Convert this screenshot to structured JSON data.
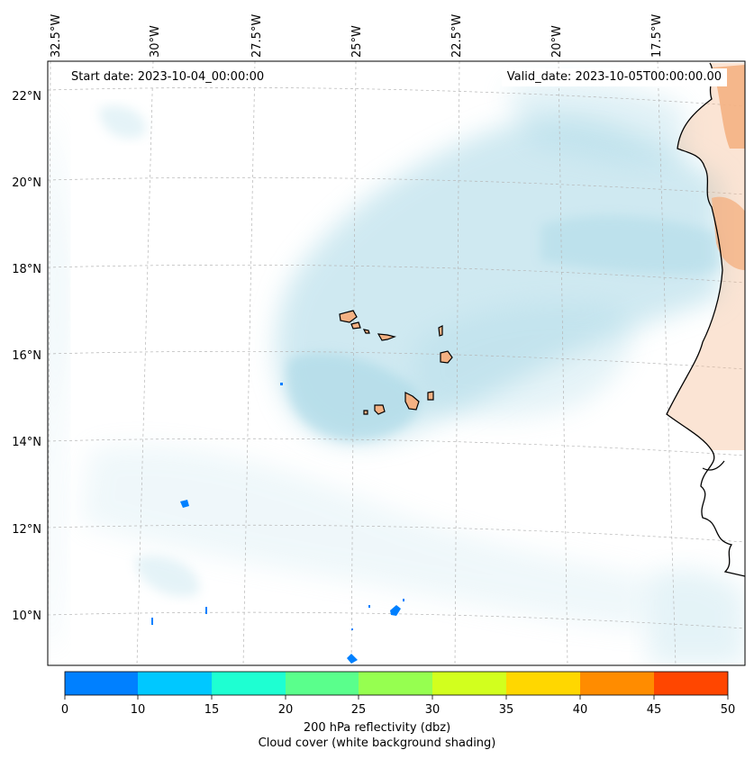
{
  "header": {
    "start_date": "Start date: 2023-10-04_00:00:00",
    "valid_date": "Valid_date: 2023-10-05T00:00:00.00"
  },
  "lon_labels": [
    "32.5°W",
    "30°W",
    "27.5°W",
    "25°W",
    "22.5°W",
    "20°W",
    "17.5°W"
  ],
  "lat_labels": [
    "22°N",
    "20°N",
    "18°N",
    "16°N",
    "14°N",
    "12°N",
    "10°N"
  ],
  "colorbar": {
    "ticks": [
      "0",
      "10",
      "15",
      "20",
      "25",
      "30",
      "35",
      "40",
      "45",
      "50"
    ],
    "colors": [
      "#0080ff",
      "#00c8ff",
      "#1effd2",
      "#5aff8c",
      "#96ff50",
      "#d2ff1e",
      "#ffd700",
      "#ff8c00",
      "#ff4600"
    ],
    "label_line1": "200 hPa reflectivity (dbz)",
    "label_line2": "Cloud cover (white background shading)"
  },
  "land_color": "#f4b183",
  "cloud_color": "#a9d8e6"
}
